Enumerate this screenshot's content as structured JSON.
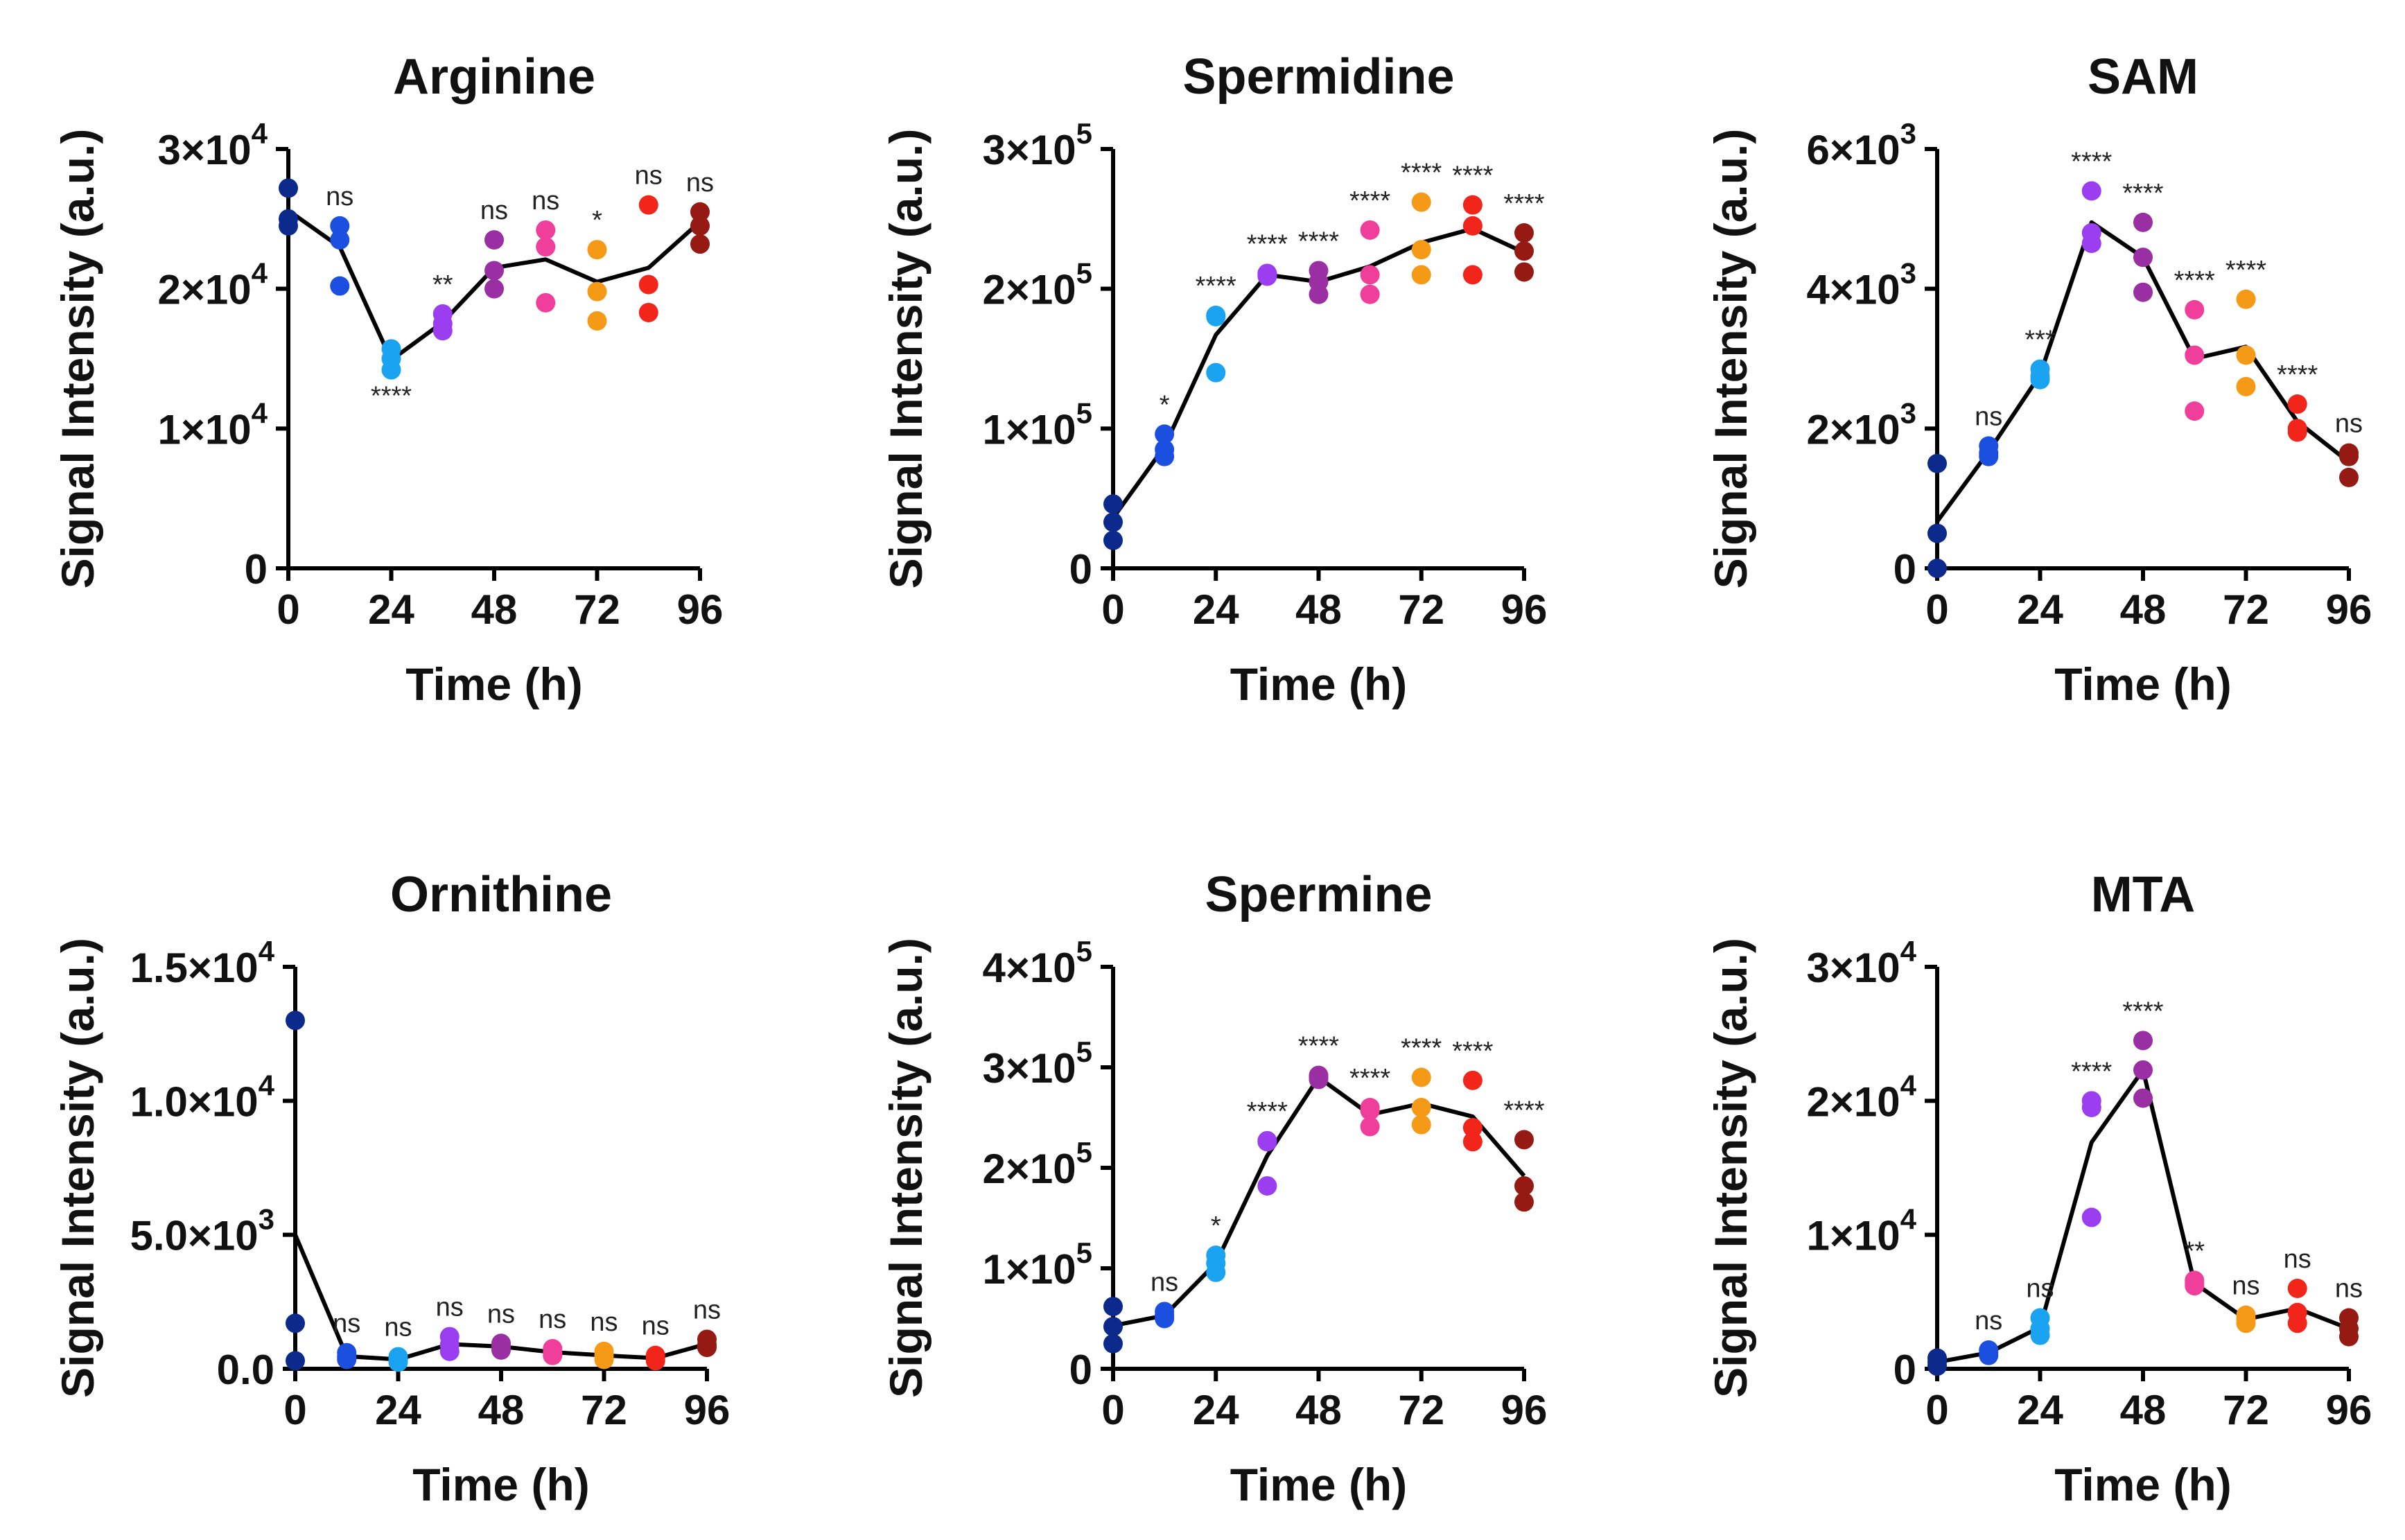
{
  "chart_data": [
    {
      "type": "scatter",
      "title": "Arginine",
      "xlabel": "Time (h)",
      "ylabel": "Signal Intensity (a.u.)",
      "xlim": [
        0,
        96
      ],
      "ylim": [
        0,
        30000
      ],
      "xticks": [
        0,
        24,
        48,
        72,
        96
      ],
      "xtick_labels": [
        "0",
        "24",
        "48",
        "72",
        "96"
      ],
      "yticks": [
        0,
        10000,
        20000,
        30000
      ],
      "ytick_labels": [
        [
          "0",
          ""
        ],
        [
          "1×10",
          "4"
        ],
        [
          "2×10",
          "4"
        ],
        [
          "3×10",
          "4"
        ]
      ],
      "times": [
        0,
        12,
        24,
        36,
        48,
        60,
        72,
        84,
        96
      ],
      "replicates": [
        [
          27200,
          25000,
          24500
        ],
        [
          24500,
          23500,
          20200
        ],
        [
          15700,
          15000,
          14200
        ],
        [
          18200,
          17500,
          17000
        ],
        [
          23500,
          21300,
          20000
        ],
        [
          24200,
          23000,
          19000
        ],
        [
          22800,
          19800,
          17700
        ],
        [
          26000,
          20300,
          18300
        ],
        [
          25500,
          24500,
          23200
        ]
      ],
      "mean_line": [
        25600,
        23000,
        14900,
        17600,
        21500,
        22100,
        20500,
        21500,
        24800
      ],
      "significance": [
        "",
        "ns",
        "****",
        "**",
        "ns",
        "ns",
        "*",
        "ns",
        "ns"
      ]
    },
    {
      "type": "scatter",
      "title": "Spermidine",
      "xlabel": "Time (h)",
      "ylabel": "Signal Intensity (a.u.)",
      "xlim": [
        0,
        96
      ],
      "ylim": [
        0,
        300000
      ],
      "xticks": [
        0,
        24,
        48,
        72,
        96
      ],
      "xtick_labels": [
        "0",
        "24",
        "48",
        "72",
        "96"
      ],
      "yticks": [
        0,
        100000,
        200000,
        300000
      ],
      "ytick_labels": [
        [
          "0",
          ""
        ],
        [
          "1×10",
          "5"
        ],
        [
          "2×10",
          "5"
        ],
        [
          "3×10",
          "5"
        ]
      ],
      "times": [
        0,
        12,
        24,
        36,
        48,
        60,
        72,
        84,
        96
      ],
      "replicates": [
        [
          46000,
          33000,
          20000
        ],
        [
          96000,
          85000,
          80000
        ],
        [
          181000,
          180000,
          140000
        ],
        [
          211000,
          210000,
          209000
        ],
        [
          213000,
          205000,
          196000
        ],
        [
          242000,
          210000,
          196000
        ],
        [
          262000,
          228000,
          210000
        ],
        [
          260000,
          245000,
          210000
        ],
        [
          240000,
          227000,
          212000
        ]
      ],
      "mean_line": [
        36000,
        87000,
        167000,
        210000,
        205000,
        216000,
        233000,
        243000,
        226000
      ],
      "significance": [
        "",
        "*",
        "****",
        "****",
        "****",
        "****",
        "****",
        "****",
        "****"
      ]
    },
    {
      "type": "scatter",
      "title": "SAM",
      "xlabel": "Time (h)",
      "ylabel": "Signal Intensity (a.u.)",
      "xlim": [
        0,
        96
      ],
      "ylim": [
        0,
        6000
      ],
      "xticks": [
        0,
        24,
        48,
        72,
        96
      ],
      "xtick_labels": [
        "0",
        "24",
        "48",
        "72",
        "96"
      ],
      "yticks": [
        0,
        2000,
        4000,
        6000
      ],
      "ytick_labels": [
        [
          "0",
          ""
        ],
        [
          "2×10",
          "3"
        ],
        [
          "4×10",
          "3"
        ],
        [
          "6×10",
          "3"
        ]
      ],
      "times": [
        0,
        12,
        24,
        36,
        48,
        60,
        72,
        84,
        96
      ],
      "replicates": [
        [
          1500,
          500,
          0
        ],
        [
          1750,
          1650,
          1600
        ],
        [
          2850,
          2750,
          2700
        ],
        [
          5400,
          4800,
          4650
        ],
        [
          4950,
          4450,
          3950
        ],
        [
          3700,
          3050,
          2250
        ],
        [
          3850,
          3050,
          2600
        ],
        [
          2350,
          2000,
          1950
        ],
        [
          1650,
          1600,
          1300
        ]
      ],
      "mean_line": [
        670,
        1670,
        2770,
        4950,
        4450,
        3000,
        3170,
        2100,
        1520
      ],
      "significance": [
        "",
        "ns",
        "***",
        "****",
        "****",
        "****",
        "****",
        "****",
        "ns"
      ]
    },
    {
      "type": "scatter",
      "title": "Ornithine",
      "xlabel": "Time (h)",
      "ylabel": "Signal Intensity (a.u.)",
      "xlim": [
        0,
        96
      ],
      "ylim": [
        0,
        15000
      ],
      "xticks": [
        0,
        24,
        48,
        72,
        96
      ],
      "xtick_labels": [
        "0",
        "24",
        "48",
        "72",
        "96"
      ],
      "yticks": [
        0,
        5000,
        10000,
        15000
      ],
      "ytick_labels": [
        [
          "0.0",
          ""
        ],
        [
          "5.0×10",
          "3"
        ],
        [
          "1.0×10",
          "4"
        ],
        [
          "1.5×10",
          "4"
        ]
      ],
      "times": [
        0,
        12,
        24,
        36,
        48,
        60,
        72,
        84,
        96
      ],
      "replicates": [
        [
          13000,
          1700,
          300
        ],
        [
          600,
          450,
          350
        ],
        [
          450,
          350,
          250
        ],
        [
          1200,
          900,
          650
        ],
        [
          950,
          850,
          700
        ],
        [
          750,
          600,
          500
        ],
        [
          650,
          500,
          350
        ],
        [
          500,
          400,
          300
        ],
        [
          1100,
          900,
          800
        ]
      ],
      "mean_line": [
        5000,
        470,
        350,
        920,
        830,
        620,
        500,
        400,
        930
      ],
      "significance": [
        "",
        "ns",
        "ns",
        "ns",
        "ns",
        "ns",
        "ns",
        "ns",
        "ns"
      ]
    },
    {
      "type": "scatter",
      "title": "Spermine",
      "xlabel": "Time (h)",
      "ylabel": "Signal Intensity (a.u.)",
      "xlim": [
        0,
        96
      ],
      "ylim": [
        0,
        400000
      ],
      "xticks": [
        0,
        24,
        48,
        72,
        96
      ],
      "xtick_labels": [
        "0",
        "24",
        "48",
        "72",
        "96"
      ],
      "yticks": [
        0,
        100000,
        200000,
        300000,
        400000
      ],
      "ytick_labels": [
        [
          "0",
          ""
        ],
        [
          "1×10",
          "5"
        ],
        [
          "2×10",
          "5"
        ],
        [
          "3×10",
          "5"
        ],
        [
          "4×10",
          "5"
        ]
      ],
      "times": [
        0,
        12,
        24,
        36,
        48,
        60,
        72,
        84,
        96
      ],
      "replicates": [
        [
          62000,
          42000,
          25000
        ],
        [
          57000,
          53000,
          50000
        ],
        [
          113000,
          105000,
          96000
        ],
        [
          227000,
          226000,
          182000
        ],
        [
          292000,
          290000,
          288000
        ],
        [
          260000,
          257000,
          241000
        ],
        [
          290000,
          260000,
          243000
        ],
        [
          287000,
          240000,
          226000
        ],
        [
          228000,
          182000,
          166000
        ]
      ],
      "mean_line": [
        43000,
        53000,
        105000,
        212000,
        290000,
        253000,
        264000,
        251000,
        192000
      ],
      "significance": [
        "",
        "ns",
        "*",
        "****",
        "****",
        "****",
        "****",
        "****",
        "****"
      ]
    },
    {
      "type": "scatter",
      "title": "MTA",
      "xlabel": "Time (h)",
      "ylabel": "Signal Intensity (a.u.)",
      "xlim": [
        0,
        96
      ],
      "ylim": [
        0,
        30000
      ],
      "xticks": [
        0,
        24,
        48,
        72,
        96
      ],
      "xtick_labels": [
        "0",
        "24",
        "48",
        "72",
        "96"
      ],
      "yticks": [
        0,
        10000,
        20000,
        30000
      ],
      "ytick_labels": [
        [
          "0",
          ""
        ],
        [
          "1×10",
          "4"
        ],
        [
          "2×10",
          "4"
        ],
        [
          "3×10",
          "4"
        ]
      ],
      "times": [
        0,
        12,
        24,
        36,
        48,
        60,
        72,
        84,
        96
      ],
      "replicates": [
        [
          800,
          500,
          200
        ],
        [
          1400,
          1200,
          1000
        ],
        [
          3800,
          3000,
          2500
        ],
        [
          20000,
          19500,
          11300
        ],
        [
          24500,
          22300,
          20200
        ],
        [
          6600,
          6400,
          6200
        ],
        [
          4000,
          3700,
          3400
        ],
        [
          6000,
          4200,
          3400
        ],
        [
          3800,
          3000,
          2400
        ]
      ],
      "mean_line": [
        500,
        1200,
        3100,
        16900,
        22300,
        6400,
        3700,
        4500,
        3000
      ],
      "significance": [
        "",
        "ns",
        "ns",
        "****",
        "****",
        "**",
        "ns",
        "ns",
        "ns"
      ]
    }
  ],
  "time_point_colors": [
    "#0b2a8c",
    "#1a4fe0",
    "#1aa3f0",
    "#9b3ef0",
    "#9a2fa3",
    "#f03f9b",
    "#f59a17",
    "#f2251a",
    "#951a14"
  ],
  "line_color": "#000000"
}
